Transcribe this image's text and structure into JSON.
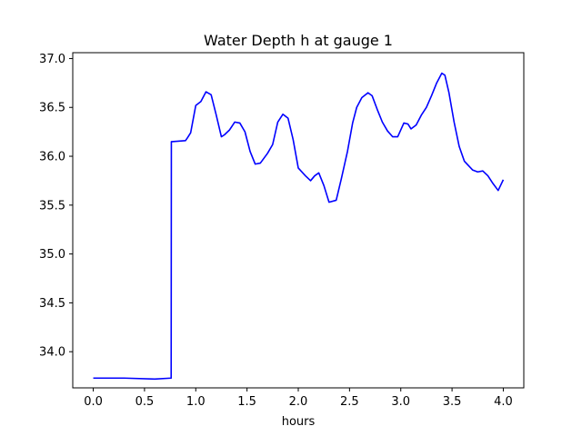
{
  "chart_data": {
    "type": "line",
    "title": "Water Depth h at gauge 1",
    "xlabel": "hours",
    "ylabel": "",
    "xlim": [
      -0.2,
      4.2
    ],
    "ylim": [
      33.63,
      37.06
    ],
    "grid": false,
    "xticks": [
      0.0,
      0.5,
      1.0,
      1.5,
      2.0,
      2.5,
      3.0,
      3.5,
      4.0
    ],
    "xtick_labels": [
      "0.0",
      "0.5",
      "1.0",
      "1.5",
      "2.0",
      "2.5",
      "3.0",
      "3.5",
      "4.0"
    ],
    "yticks": [
      34.0,
      34.5,
      35.0,
      35.5,
      36.0,
      36.5,
      37.0
    ],
    "ytick_labels": [
      "34.0",
      "34.5",
      "35.0",
      "35.5",
      "36.0",
      "36.5",
      "37.0"
    ],
    "series": [
      {
        "color": "#0000ff",
        "x": [
          0.0,
          0.3,
          0.6,
          0.76,
          0.762,
          0.77,
          0.9,
          0.92,
          0.95,
          1.0,
          1.05,
          1.1,
          1.15,
          1.2,
          1.25,
          1.28,
          1.33,
          1.38,
          1.43,
          1.48,
          1.53,
          1.58,
          1.63,
          1.7,
          1.75,
          1.8,
          1.85,
          1.9,
          1.95,
          2.0,
          2.07,
          2.12,
          2.16,
          2.2,
          2.25,
          2.3,
          2.37,
          2.42,
          2.48,
          2.53,
          2.57,
          2.62,
          2.68,
          2.72,
          2.77,
          2.82,
          2.87,
          2.92,
          2.97,
          3.03,
          3.07,
          3.1,
          3.15,
          3.2,
          3.25,
          3.3,
          3.35,
          3.4,
          3.43,
          3.47,
          3.52,
          3.57,
          3.62,
          3.7,
          3.75,
          3.8,
          3.85,
          3.9,
          3.95,
          4.0
        ],
        "y": [
          33.73,
          33.73,
          33.72,
          33.73,
          36.15,
          36.15,
          36.16,
          36.19,
          36.24,
          36.52,
          36.56,
          36.66,
          36.63,
          36.42,
          36.2,
          36.22,
          36.27,
          36.35,
          36.34,
          36.25,
          36.05,
          35.92,
          35.93,
          36.03,
          36.12,
          36.35,
          36.43,
          36.39,
          36.17,
          35.88,
          35.8,
          35.75,
          35.8,
          35.83,
          35.7,
          35.53,
          35.55,
          35.77,
          36.05,
          36.34,
          36.5,
          36.6,
          36.65,
          36.62,
          36.48,
          36.35,
          36.26,
          36.2,
          36.2,
          36.34,
          36.33,
          36.28,
          36.32,
          36.42,
          36.5,
          36.62,
          36.75,
          36.85,
          36.83,
          36.65,
          36.35,
          36.1,
          35.95,
          35.86,
          35.84,
          35.85,
          35.8,
          35.72,
          35.65,
          35.76
        ]
      }
    ]
  }
}
